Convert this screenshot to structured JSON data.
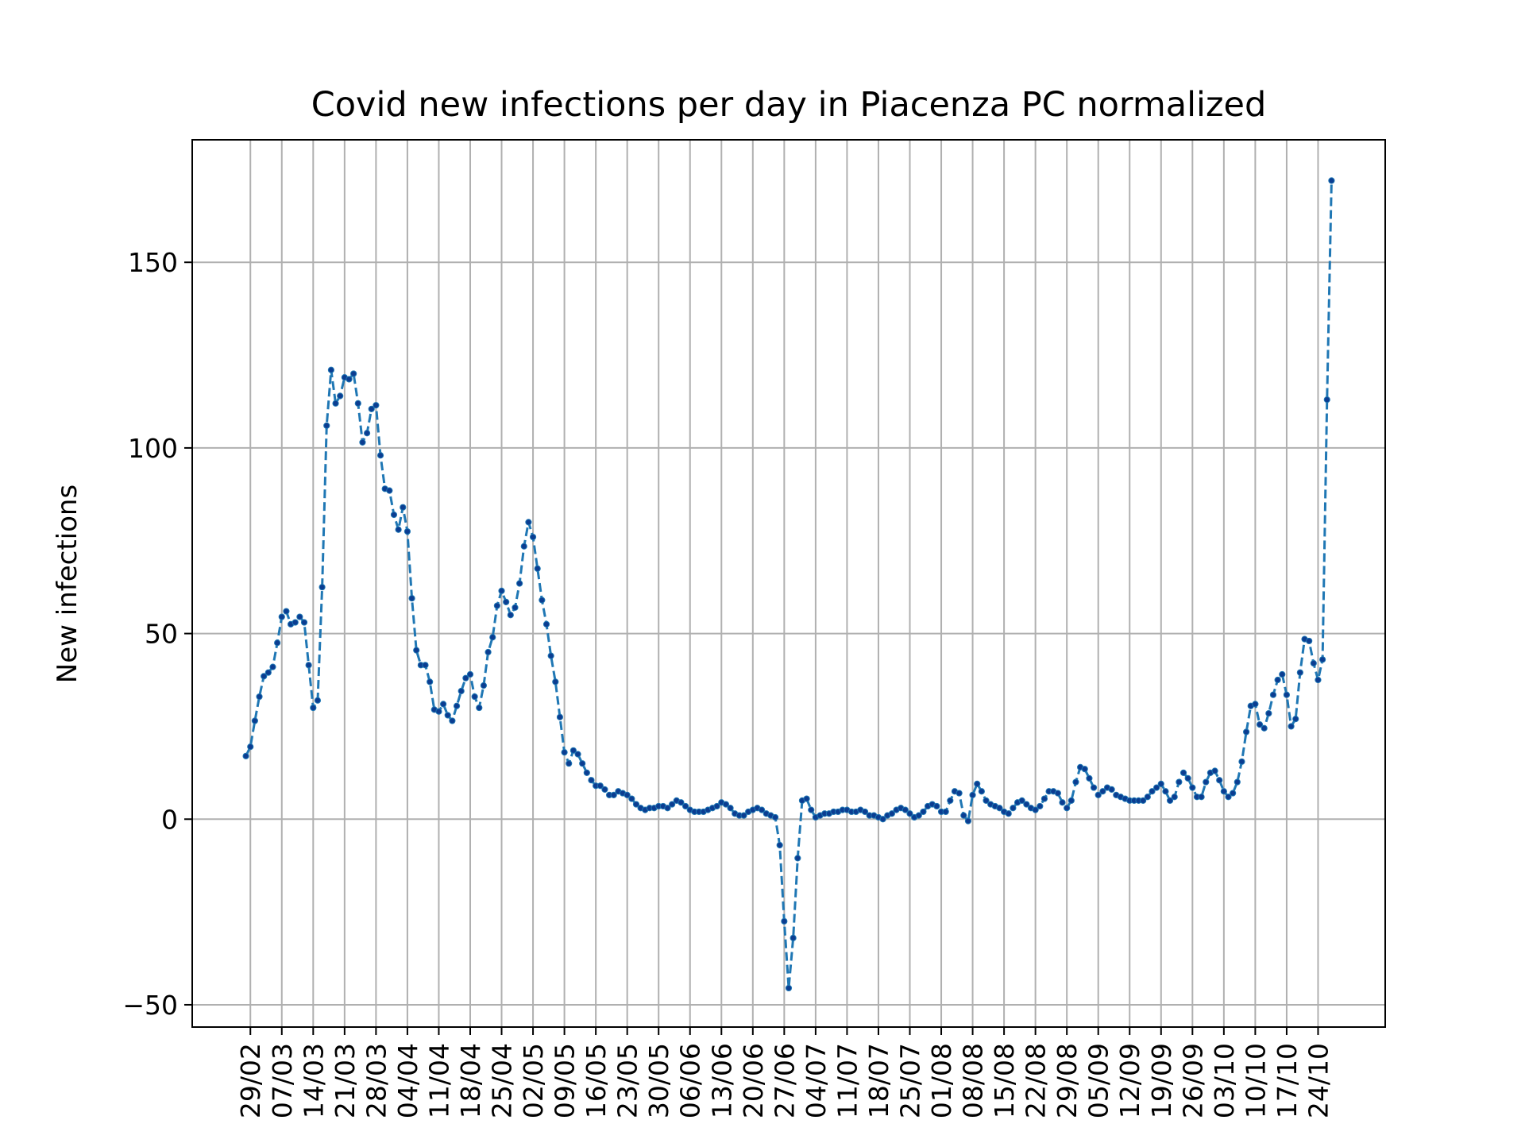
{
  "chart_data": {
    "type": "line",
    "title": "Covid new infections per day in Piacenza PC normalized",
    "xlabel": "",
    "ylabel": "New infections",
    "x_tick_labels": [
      "29/02",
      "07/03",
      "14/03",
      "21/03",
      "28/03",
      "04/04",
      "11/04",
      "18/04",
      "25/04",
      "02/05",
      "09/05",
      "16/05",
      "23/05",
      "30/05",
      "06/06",
      "13/06",
      "20/06",
      "27/06",
      "04/07",
      "11/07",
      "18/07",
      "25/07",
      "01/08",
      "08/08",
      "15/08",
      "22/08",
      "29/08",
      "05/09",
      "12/09",
      "19/09",
      "26/09",
      "03/10",
      "10/10",
      "17/10",
      "24/10"
    ],
    "y_ticks": [
      -50,
      0,
      50,
      100,
      150
    ],
    "y_tick_labels": [
      "−50",
      "0",
      "50",
      "100",
      "150"
    ],
    "ylim": [
      -56,
      183
    ],
    "grid": true,
    "line_style": "dashed",
    "line_color": "#1f77b4",
    "marker_color": "#0b3d91",
    "series": [
      {
        "start_date": "2020-02-28",
        "values": [
          17,
          19.5,
          26.5,
          33,
          38.5,
          39.5,
          41,
          47.5,
          54.5,
          56,
          52.5,
          53,
          54.5,
          53,
          41.5,
          30,
          32,
          62.5,
          106,
          121,
          112,
          114,
          119,
          118.5,
          120,
          112,
          101.5,
          104,
          110.5,
          111.5,
          98,
          89,
          88.5,
          82,
          78,
          84,
          77.5,
          59.5,
          45.5,
          41.5,
          41.5,
          37,
          29.5,
          29,
          31,
          28,
          26.5,
          30.5,
          34.5,
          38,
          39,
          33,
          30,
          36,
          45,
          49,
          57.5,
          61.5,
          58.5,
          55,
          57,
          63.5,
          73.5,
          80,
          76,
          67.5,
          59,
          52.5,
          44,
          37,
          27.5,
          18,
          15,
          18.5,
          17.5,
          15,
          12.5,
          10.5,
          9,
          9,
          8,
          6.5,
          6.5,
          7.5,
          7,
          6.5,
          5.5,
          4,
          3,
          2.5,
          3,
          3,
          3.5,
          3.5,
          3,
          4,
          5,
          4.5,
          3.5,
          2.5,
          2,
          2,
          2,
          2.5,
          3,
          3.5,
          4.5,
          4,
          3,
          1.5,
          1,
          1,
          2,
          2.5,
          3,
          2.5,
          1.5,
          1,
          0.5,
          -7,
          -27.5,
          -45.5,
          -32,
          -10.5,
          5,
          5.5,
          2.5,
          0.5,
          1,
          1.5,
          1.5,
          2,
          2,
          2.5,
          2.5,
          2,
          2,
          2.5,
          2,
          1,
          1,
          0.5,
          0,
          1,
          1.5,
          2.5,
          3,
          2.5,
          1.5,
          0.5,
          1,
          2,
          3.5,
          4,
          3.5,
          2,
          2,
          5,
          7.5,
          7,
          1,
          -0.5,
          6.5,
          9.5,
          7.5,
          5,
          4,
          3.5,
          3,
          2,
          1.5,
          3,
          4.5,
          5,
          4,
          3,
          2.5,
          3.5,
          5.5,
          7.5,
          7.5,
          7,
          4.5,
          3,
          5,
          10,
          14,
          13.5,
          11,
          8.5,
          6.5,
          7.5,
          8.5,
          8,
          6.5,
          6,
          5.5,
          5,
          5,
          5,
          5,
          6,
          7.5,
          8.5,
          9.5,
          7.5,
          5,
          6,
          10,
          12.5,
          11,
          8.5,
          6,
          6,
          10,
          12.5,
          13,
          10.5,
          7.5,
          6,
          7,
          10,
          15.5,
          23.5,
          30.5,
          31,
          25.5,
          24.5,
          28.5,
          33.5,
          37.5,
          39,
          33.5,
          25,
          27,
          39.5,
          48.5,
          48,
          42,
          37.5,
          43,
          113,
          172
        ]
      }
    ]
  }
}
